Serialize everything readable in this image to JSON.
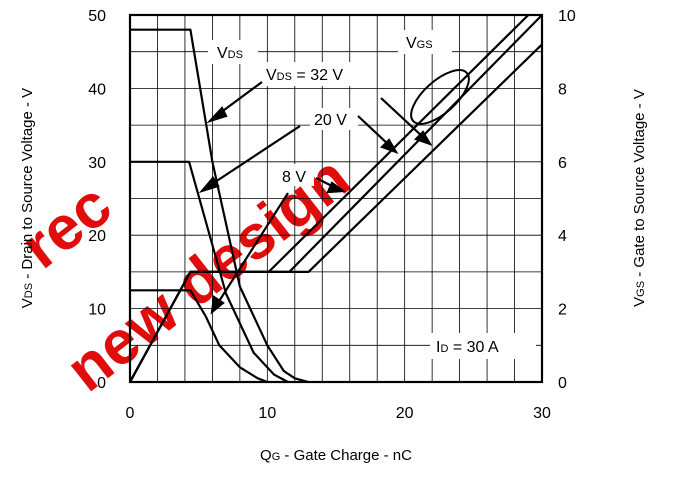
{
  "chart_data": {
    "type": "line",
    "xlabel": "QG - Gate Charge - nC",
    "xlabel_main": "Q",
    "xlabel_sub": "G",
    "xlabel_rest": " - Gate Charge - nC",
    "ylabel_left": "VDS - Drain to Source Voltage - V",
    "ylabel_left_main": "V",
    "ylabel_left_sub": "DS",
    "ylabel_left_rest": " - Drain to Source Voltage - V",
    "ylabel_right": "VGS - Gate to Source Voltage - V",
    "ylabel_right_main": "V",
    "ylabel_right_sub": "GS",
    "ylabel_right_rest": " - Gate to Source Voltage - V",
    "xlim": [
      0,
      30
    ],
    "ylim_left": [
      0,
      50
    ],
    "ylim_right": [
      0,
      10
    ],
    "x_ticks": [
      "0",
      "10",
      "20",
      "30"
    ],
    "y_left_ticks": [
      "0",
      "10",
      "20",
      "30",
      "40",
      "50"
    ],
    "y_right_ticks": [
      "0",
      "2",
      "4",
      "6",
      "8",
      "10"
    ],
    "grid": true,
    "series": [
      {
        "name": "VDS = 32 V",
        "axis": "left",
        "x": [
          0,
          4.4,
          6,
          8,
          10,
          11.2,
          12,
          13
        ],
        "y": [
          48,
          48,
          30,
          13,
          5,
          1.5,
          0.5,
          0
        ]
      },
      {
        "name": "VDS = 20 V",
        "axis": "left",
        "x": [
          0,
          4.3,
          5.5,
          7,
          9,
          10.5,
          11.5
        ],
        "y": [
          30,
          30,
          22,
          12,
          4,
          1,
          0
        ]
      },
      {
        "name": "VDS = 8 V",
        "axis": "left",
        "x": [
          0,
          4.4,
          5.5,
          6.5,
          8,
          9.3,
          10
        ],
        "y": [
          12.5,
          12.5,
          9,
          5,
          2,
          0.5,
          0
        ]
      },
      {
        "name": "VGS 8 V",
        "axis": "right",
        "x": [
          0,
          4.4,
          10.1,
          29
        ],
        "y": [
          0,
          3,
          3,
          10
        ]
      },
      {
        "name": "VGS 20 V",
        "axis": "right",
        "x": [
          0,
          4.4,
          11.6,
          30
        ],
        "y": [
          0,
          3,
          3,
          10
        ]
      },
      {
        "name": "VGS 32 V",
        "axis": "right",
        "x": [
          0,
          4.4,
          13,
          30
        ],
        "y": [
          0,
          3,
          3,
          9.2
        ]
      }
    ],
    "annotations": {
      "vds_label_main": "V",
      "vds_label_sub": "DS",
      "vgs_label_main": "V",
      "vgs_label_sub": "GS",
      "v32_main": "V",
      "v32_sub": "DS",
      "v32_rest": " = 32 V",
      "v20": "20 V",
      "v8": "8 V",
      "id_main": "I",
      "id_sub": "D",
      "id_rest": " = 30 A"
    },
    "watermark": "new design"
  }
}
